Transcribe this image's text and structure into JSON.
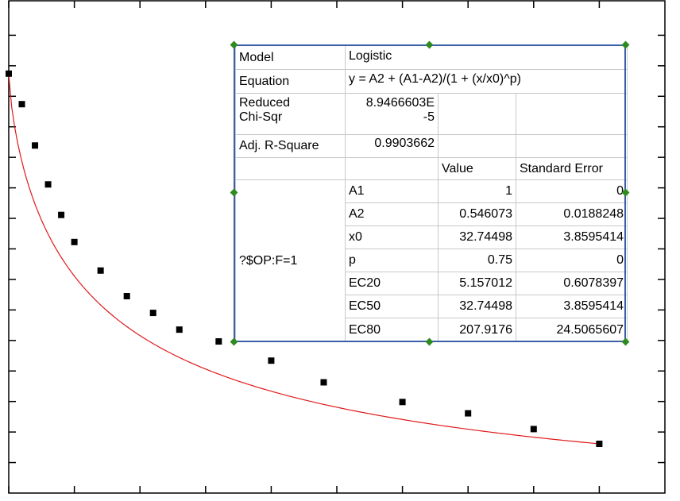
{
  "chart_data": {
    "type": "scatter",
    "title": "",
    "xlabel": "",
    "ylabel": "",
    "xlim": [
      0,
      1000
    ],
    "ylim": [
      0,
      1000
    ],
    "grid": false,
    "legend": "none",
    "series": [
      {
        "values": [
          {
            "x": 0,
            "y": 852
          },
          {
            "x": 20,
            "y": 790
          },
          {
            "x": 40,
            "y": 706
          },
          {
            "x": 60,
            "y": 627
          },
          {
            "x": 80,
            "y": 565
          },
          {
            "x": 100,
            "y": 510
          },
          {
            "x": 140,
            "y": 452
          },
          {
            "x": 180,
            "y": 400
          },
          {
            "x": 220,
            "y": 366
          },
          {
            "x": 260,
            "y": 332
          },
          {
            "x": 320,
            "y": 308
          },
          {
            "x": 400,
            "y": 269
          },
          {
            "x": 480,
            "y": 225
          },
          {
            "x": 600,
            "y": 185
          },
          {
            "x": 700,
            "y": 162
          },
          {
            "x": 800,
            "y": 130
          },
          {
            "x": 900,
            "y": 100
          }
        ]
      },
      {
        "type": "line",
        "x_end": 900,
        "y_start": 850,
        "y_end": 100
      }
    ],
    "style": {
      "marker_color": "#000000",
      "fit_color": "#e0191b",
      "frame_color": "#3a5ea8",
      "handle_color": "#2e8b1f"
    },
    "fit_table": {
      "model_label": "Model",
      "model_value": "Logistic",
      "equation_label": "Equation",
      "equation_value": "y = A2 + (A1-A2)/(1 + (x/x0)^p)",
      "chisq_label_1": "Reduced",
      "chisq_label_2": "Chi-Sqr",
      "chisq_value_1": "8.9466603E",
      "chisq_value_2": "-5",
      "r2_label": "Adj. R-Square",
      "r2_value": "0.9903662",
      "col_value": "Value",
      "col_se": "Standard Error",
      "group_label": "?$OP:F=1",
      "params": [
        {
          "name": "A1",
          "value": "1",
          "se": "0"
        },
        {
          "name": "A2",
          "value": "0.546073",
          "se": "0.0188248"
        },
        {
          "name": "x0",
          "value": "32.74498",
          "se": "3.8595414"
        },
        {
          "name": "p",
          "value": "0.75",
          "se": "0"
        },
        {
          "name": "EC20",
          "value": "5.157012",
          "se": "0.6078397"
        },
        {
          "name": "EC50",
          "value": "32.74498",
          "se": "3.8595414"
        },
        {
          "name": "EC80",
          "value": "207.9176",
          "se": "24.5065607"
        }
      ]
    }
  }
}
